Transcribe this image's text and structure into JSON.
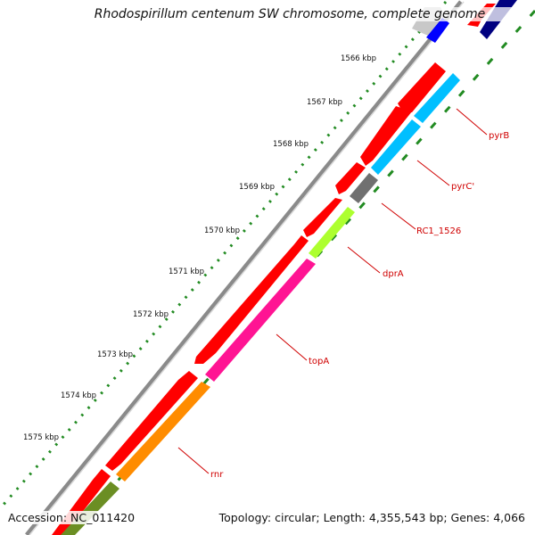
{
  "title": "Rhodospirillum centenum SW chromosome, complete genome",
  "accession": "Accession: NC_011420",
  "topology": "Topology: circular; Length: 4,355,543 bp; Genes: 4,066",
  "scale_labels": [
    "1566 kbp",
    "1567 kbp",
    "1568 kbp",
    "1569 kbp",
    "1570 kbp",
    "1571 kbp",
    "1572 kbp",
    "1573 kbp",
    "1574 kbp",
    "1575 kbp"
  ],
  "gene_labels": [
    "pyrB",
    "pyrC'",
    "RC1_1526",
    "dprA",
    "topA",
    "rnr"
  ],
  "colors": {
    "forward_gene": "#ff0000",
    "reverse_track": "#ff0000",
    "pyrB": "#00bfff",
    "pyrC": "#00bfff",
    "RC1_1526": "#707070",
    "dprA": "#adff2f",
    "topA": "#ff1493",
    "rnr": "#ff8c00",
    "bottom_gene": "#6b8e23",
    "label_red": "#d00000",
    "kbp_tick": "#228b22",
    "backbone": "#8a8a8a",
    "top_gene_blue": "#0000ff",
    "top_gene_navy": "#000080"
  }
}
